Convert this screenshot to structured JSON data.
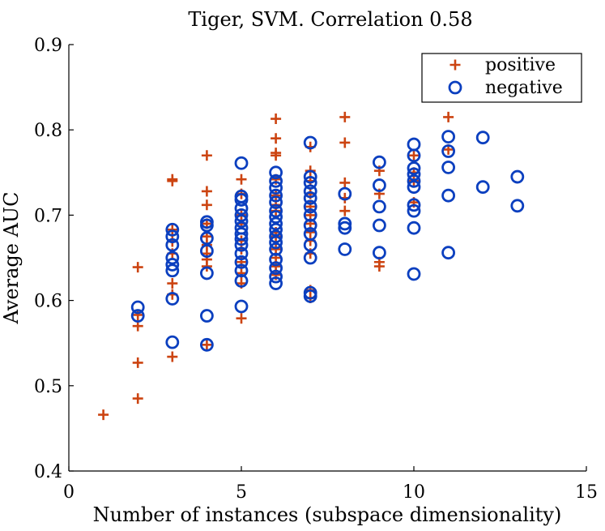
{
  "chart_data": {
    "type": "scatter",
    "title": "Tiger, SVM. Correlation 0.58",
    "xlabel": "Number of instances (subspace dimensionality)",
    "ylabel": "Average AUC",
    "xlim": [
      0,
      15
    ],
    "ylim": [
      0.4,
      0.9
    ],
    "xticks": [
      0,
      5,
      10,
      15
    ],
    "yticks": [
      0.4,
      0.5,
      0.6,
      0.7,
      0.8,
      0.9
    ],
    "xtick_labels": [
      "0",
      "5",
      "10",
      "15"
    ],
    "ytick_labels": [
      "0.4",
      "0.5",
      "0.6",
      "0.7",
      "0.8",
      "0.9"
    ],
    "grid": false,
    "legend_position": "top-right",
    "series": [
      {
        "name": "positive",
        "marker": "plus",
        "color": "#cc4411",
        "points": [
          [
            1,
            0.466
          ],
          [
            2,
            0.639
          ],
          [
            2,
            0.583
          ],
          [
            2,
            0.57
          ],
          [
            2,
            0.527
          ],
          [
            2,
            0.485
          ],
          [
            3,
            0.742
          ],
          [
            3,
            0.74
          ],
          [
            3,
            0.683
          ],
          [
            3,
            0.669
          ],
          [
            3,
            0.655
          ],
          [
            3,
            0.62
          ],
          [
            3,
            0.607
          ],
          [
            3,
            0.534
          ],
          [
            4,
            0.77
          ],
          [
            4,
            0.728
          ],
          [
            4,
            0.712
          ],
          [
            4,
            0.69
          ],
          [
            4,
            0.675
          ],
          [
            4,
            0.665
          ],
          [
            4,
            0.655
          ],
          [
            4,
            0.648
          ],
          [
            4,
            0.64
          ],
          [
            4,
            0.548
          ],
          [
            5,
            0.742
          ],
          [
            5,
            0.725
          ],
          [
            5,
            0.7
          ],
          [
            5,
            0.69
          ],
          [
            5,
            0.67
          ],
          [
            5,
            0.66
          ],
          [
            5,
            0.645
          ],
          [
            5,
            0.632
          ],
          [
            5,
            0.62
          ],
          [
            5,
            0.579
          ],
          [
            6,
            0.813
          ],
          [
            6,
            0.79
          ],
          [
            6,
            0.773
          ],
          [
            6,
            0.77
          ],
          [
            6,
            0.742
          ],
          [
            6,
            0.723
          ],
          [
            6,
            0.712
          ],
          [
            6,
            0.705
          ],
          [
            6,
            0.68
          ],
          [
            6,
            0.675
          ],
          [
            6,
            0.66
          ],
          [
            6,
            0.65
          ],
          [
            6,
            0.64
          ],
          [
            6,
            0.63
          ],
          [
            7,
            0.78
          ],
          [
            7,
            0.752
          ],
          [
            7,
            0.74
          ],
          [
            7,
            0.725
          ],
          [
            7,
            0.71
          ],
          [
            7,
            0.7
          ],
          [
            7,
            0.69
          ],
          [
            7,
            0.68
          ],
          [
            7,
            0.67
          ],
          [
            7,
            0.655
          ],
          [
            7,
            0.612
          ],
          [
            7,
            0.603
          ],
          [
            8,
            0.815
          ],
          [
            8,
            0.785
          ],
          [
            8,
            0.738
          ],
          [
            8,
            0.72
          ],
          [
            8,
            0.705
          ],
          [
            9,
            0.752
          ],
          [
            9,
            0.725
          ],
          [
            9,
            0.645
          ],
          [
            9,
            0.64
          ],
          [
            10,
            0.77
          ],
          [
            10,
            0.75
          ],
          [
            10,
            0.74
          ],
          [
            10,
            0.715
          ],
          [
            11,
            0.815
          ],
          [
            11,
            0.777
          ]
        ]
      },
      {
        "name": "negative",
        "marker": "circle",
        "color": "#0b3fbf",
        "points": [
          [
            2,
            0.592
          ],
          [
            2,
            0.582
          ],
          [
            3,
            0.683
          ],
          [
            3,
            0.675
          ],
          [
            3,
            0.665
          ],
          [
            3,
            0.65
          ],
          [
            3,
            0.642
          ],
          [
            3,
            0.635
          ],
          [
            3,
            0.602
          ],
          [
            3,
            0.551
          ],
          [
            4,
            0.692
          ],
          [
            4,
            0.688
          ],
          [
            4,
            0.673
          ],
          [
            4,
            0.658
          ],
          [
            4,
            0.632
          ],
          [
            4,
            0.582
          ],
          [
            4,
            0.548
          ],
          [
            5,
            0.761
          ],
          [
            5,
            0.722
          ],
          [
            5,
            0.718
          ],
          [
            5,
            0.708
          ],
          [
            5,
            0.7
          ],
          [
            5,
            0.693
          ],
          [
            5,
            0.685
          ],
          [
            5,
            0.678
          ],
          [
            5,
            0.672
          ],
          [
            5,
            0.665
          ],
          [
            5,
            0.655
          ],
          [
            5,
            0.645
          ],
          [
            5,
            0.635
          ],
          [
            5,
            0.623
          ],
          [
            5,
            0.593
          ],
          [
            6,
            0.75
          ],
          [
            6,
            0.74
          ],
          [
            6,
            0.732
          ],
          [
            6,
            0.723
          ],
          [
            6,
            0.715
          ],
          [
            6,
            0.705
          ],
          [
            6,
            0.698
          ],
          [
            6,
            0.69
          ],
          [
            6,
            0.683
          ],
          [
            6,
            0.675
          ],
          [
            6,
            0.668
          ],
          [
            6,
            0.66
          ],
          [
            6,
            0.648
          ],
          [
            6,
            0.638
          ],
          [
            6,
            0.628
          ],
          [
            6,
            0.62
          ],
          [
            7,
            0.785
          ],
          [
            7,
            0.745
          ],
          [
            7,
            0.738
          ],
          [
            7,
            0.728
          ],
          [
            7,
            0.72
          ],
          [
            7,
            0.71
          ],
          [
            7,
            0.7
          ],
          [
            7,
            0.688
          ],
          [
            7,
            0.678
          ],
          [
            7,
            0.665
          ],
          [
            7,
            0.65
          ],
          [
            7,
            0.609
          ],
          [
            7,
            0.605
          ],
          [
            8,
            0.725
          ],
          [
            8,
            0.69
          ],
          [
            8,
            0.685
          ],
          [
            8,
            0.66
          ],
          [
            9,
            0.762
          ],
          [
            9,
            0.735
          ],
          [
            9,
            0.71
          ],
          [
            9,
            0.688
          ],
          [
            9,
            0.656
          ],
          [
            10,
            0.783
          ],
          [
            10,
            0.77
          ],
          [
            10,
            0.755
          ],
          [
            10,
            0.748
          ],
          [
            10,
            0.74
          ],
          [
            10,
            0.733
          ],
          [
            10,
            0.712
          ],
          [
            10,
            0.705
          ],
          [
            10,
            0.685
          ],
          [
            10,
            0.631
          ],
          [
            11,
            0.792
          ],
          [
            11,
            0.775
          ],
          [
            11,
            0.756
          ],
          [
            11,
            0.723
          ],
          [
            11,
            0.656
          ],
          [
            12,
            0.791
          ],
          [
            12,
            0.733
          ],
          [
            13,
            0.745
          ],
          [
            13,
            0.711
          ]
        ]
      }
    ]
  }
}
